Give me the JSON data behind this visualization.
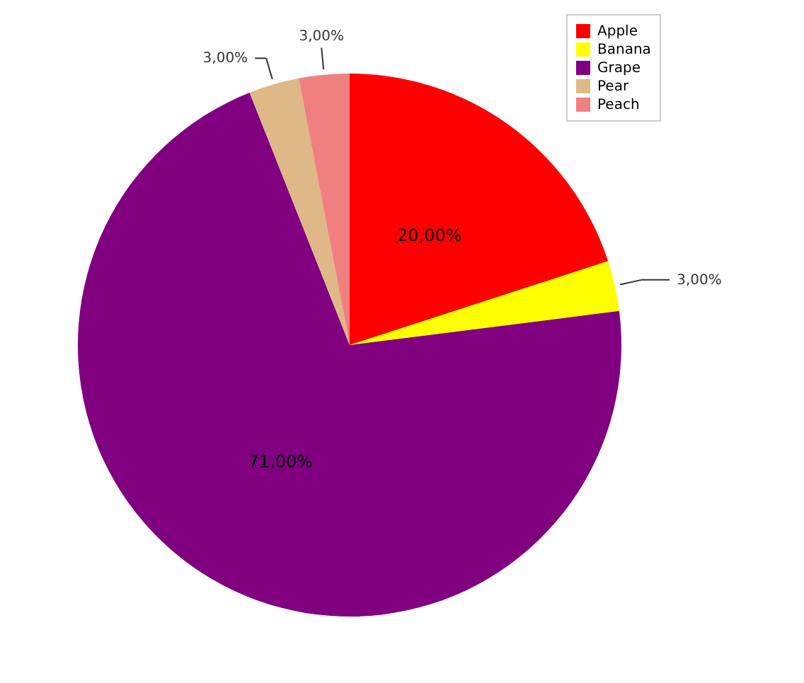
{
  "chart_data": {
    "type": "pie",
    "categories": [
      "Apple",
      "Banana",
      "Grape",
      "Pear",
      "Peach"
    ],
    "values": [
      20,
      3,
      71,
      3,
      3
    ],
    "colors": [
      "#ff0000",
      "#ffff00",
      "#800080",
      "#deb887",
      "#f08080"
    ],
    "value_labels": [
      "20,00%",
      "3,00%",
      "71,00%",
      "3,00%",
      "3,00%"
    ],
    "legend": "top right"
  }
}
